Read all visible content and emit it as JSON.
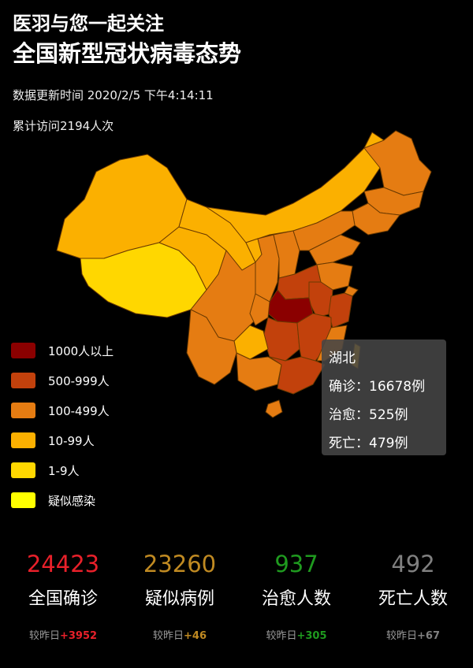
{
  "header": {
    "line1": "医羽与您一起关注",
    "line2": "全国新型冠状病毒态势",
    "update_time": "数据更新时间 2020/2/5 下午4:14:11",
    "visits": "累计访问2194人次"
  },
  "legend": [
    {
      "label": "1000人以上",
      "color": "#8b0000"
    },
    {
      "label": "500-999人",
      "color": "#c2410c"
    },
    {
      "label": "100-499人",
      "color": "#e57c12"
    },
    {
      "label": "10-99人",
      "color": "#fbb000"
    },
    {
      "label": "1-9人",
      "color": "#ffd700"
    },
    {
      "label": "疑似感染",
      "color": "#ffff00"
    }
  ],
  "tooltip": {
    "province": "湖北",
    "confirmed": "确诊：16678例",
    "cured": "治愈：525例",
    "dead": "死亡：479例"
  },
  "stats": [
    {
      "value": "24423",
      "label": "全国确诊",
      "delta_prefix": "较昨日",
      "delta": "+3952",
      "color": "#e8202a"
    },
    {
      "value": "23260",
      "label": "疑似病例",
      "delta_prefix": "较昨日",
      "delta": "+46",
      "color": "#c08a22"
    },
    {
      "value": "937",
      "label": "治愈人数",
      "delta_prefix": "较昨日",
      "delta": "+305",
      "color": "#1f9a1f"
    },
    {
      "value": "492",
      "label": "死亡人数",
      "delta_prefix": "较昨日",
      "delta": "+67",
      "color": "#808080"
    }
  ]
}
